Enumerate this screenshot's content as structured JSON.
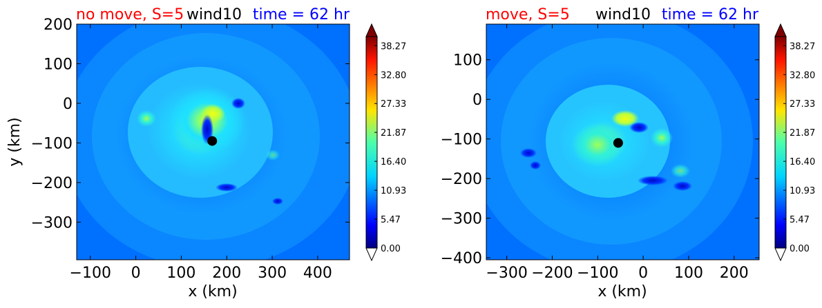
{
  "chart_data": [
    {
      "type": "heatmap",
      "title_left": "no move, S=5",
      "title_center": "wind10",
      "title_right": "time = 62 hr",
      "title_left_color": "#ff0000",
      "title_right_color": "#0000ff",
      "xlabel": "x (km)",
      "ylabel": "y (km)",
      "xlim": [
        -130,
        470
      ],
      "ylim": [
        -395,
        200
      ],
      "xticks": [
        -100,
        0,
        100,
        200,
        300,
        400
      ],
      "yticks": [
        200,
        100,
        0,
        -100,
        -200,
        -300
      ],
      "center_marker": {
        "x": 168,
        "y": -95
      },
      "colorbar": {
        "min": 0,
        "max": 40.0,
        "ticks": [
          0.0,
          5.47,
          10.93,
          16.4,
          21.87,
          27.33,
          32.8,
          38.27
        ],
        "tick_labels": [
          "0.00",
          "5.47",
          "10.93",
          "16.40",
          "21.87",
          "27.33",
          "32.80",
          "38.27"
        ],
        "extend": "both"
      }
    },
    {
      "type": "heatmap",
      "title_left": "move, S=5",
      "title_center": "wind10",
      "title_right": "time = 62 hr",
      "title_left_color": "#ff0000",
      "title_right_color": "#0000ff",
      "xlabel": "x (km)",
      "ylabel": "",
      "xlim": [
        -345,
        255
      ],
      "ylim": [
        -405,
        190
      ],
      "xticks": [
        -300,
        -200,
        -100,
        0,
        100,
        200
      ],
      "yticks": [
        100,
        0,
        -100,
        -200,
        -300,
        -400
      ],
      "center_marker": {
        "x": -55,
        "y": -110
      },
      "colorbar": {
        "min": 0,
        "max": 40.0,
        "ticks": [
          0.0,
          5.47,
          10.93,
          16.4,
          21.87,
          27.33,
          32.8,
          38.27
        ],
        "tick_labels": [
          "0.00",
          "5.47",
          "10.93",
          "16.40",
          "21.87",
          "27.33",
          "32.80",
          "38.27"
        ],
        "extend": "both"
      }
    }
  ]
}
